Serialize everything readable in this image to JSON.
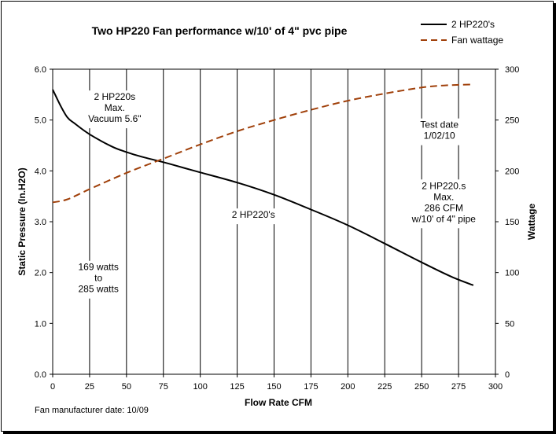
{
  "chart_data": {
    "type": "line",
    "title": "Two  HP220 Fan performance w/10' of 4\" pvc pipe",
    "xlabel": "Flow Rate  CFM",
    "ylabel": "Static Pressure (In.H2O)",
    "y2label": "Wattage",
    "xlim": [
      0,
      300
    ],
    "ylim": [
      0,
      6
    ],
    "y2lim": [
      0,
      300
    ],
    "x_ticks": [
      0,
      25,
      50,
      75,
      100,
      125,
      150,
      175,
      200,
      225,
      250,
      275,
      300
    ],
    "y_ticks": [
      "0.0",
      "1.0",
      "2.0",
      "3.0",
      "4.0",
      "5.0",
      "6.0"
    ],
    "y2_ticks": [
      0,
      50,
      100,
      150,
      200,
      250,
      300
    ],
    "grid": "vertical",
    "legend": "top-right",
    "series": [
      {
        "name": "2 HP220's",
        "axis": "left",
        "color": "#000000",
        "style": "solid",
        "x": [
          0,
          5,
          10,
          15,
          25,
          40,
          50,
          60,
          75,
          90,
          100,
          125,
          150,
          175,
          200,
          225,
          250,
          270,
          285
        ],
        "y": [
          5.6,
          5.3,
          5.05,
          4.93,
          4.72,
          4.48,
          4.37,
          4.28,
          4.17,
          4.05,
          3.97,
          3.77,
          3.53,
          3.24,
          2.93,
          2.57,
          2.2,
          1.92,
          1.75
        ]
      },
      {
        "name": "Fan wattage",
        "axis": "right",
        "color": "#A0400A",
        "style": "dashed",
        "x": [
          0,
          10,
          25,
          50,
          75,
          100,
          125,
          150,
          175,
          200,
          225,
          250,
          265,
          285
        ],
        "y": [
          169,
          172,
          182,
          198,
          212,
          226,
          239,
          250,
          260,
          269,
          276,
          282,
          284,
          285
        ]
      }
    ],
    "annotations": [
      {
        "lines": [
          "2 HP220s",
          "Max.",
          "Vacuum 5.6\""
        ],
        "x": 42,
        "y": 5.55
      },
      {
        "lines": [
          "Test date",
          "1/02/10"
        ],
        "x": 262,
        "y": 5.0
      },
      {
        "lines": [
          "2 HP220's"
        ],
        "x": 136,
        "y": 3.23
      },
      {
        "lines": [
          "2 HP220.s",
          "Max.",
          "286 CFM",
          "w/10' of 4\" pipe"
        ],
        "x": 265,
        "y": 3.8
      },
      {
        "lines": [
          "169 watts",
          "to",
          "285 watts"
        ],
        "x": 31,
        "y": 2.2
      }
    ],
    "footer": "Fan manufacturer date: 10/09"
  }
}
